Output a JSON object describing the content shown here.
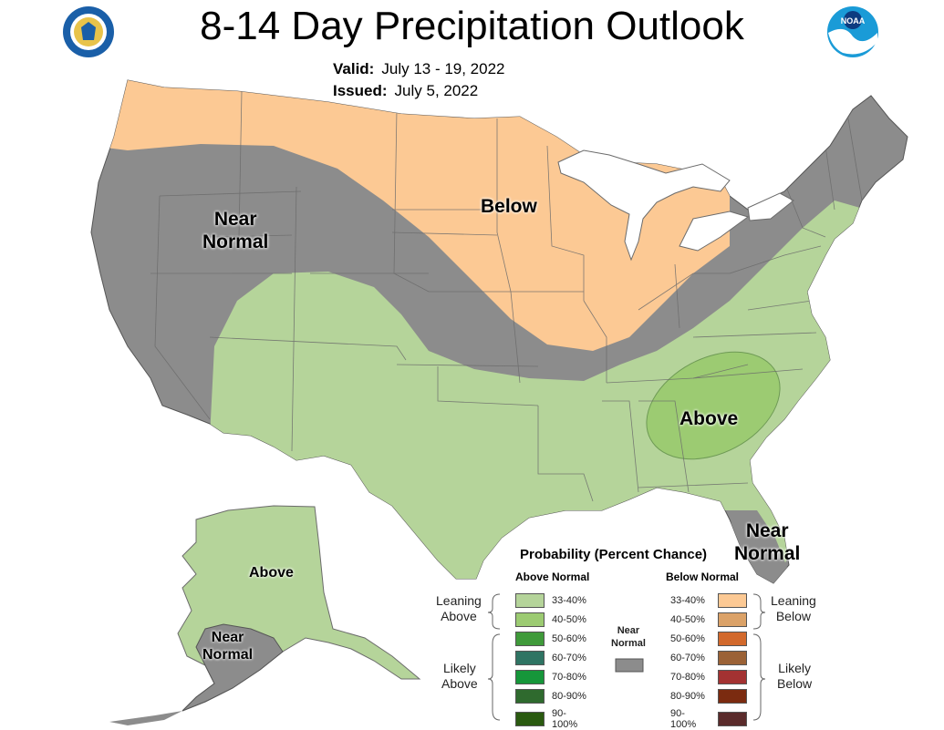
{
  "header": {
    "title": "8-14 Day Precipitation Outlook",
    "valid_label": "Valid:",
    "valid_value": "July 13 - 19, 2022",
    "issued_label": "Issued:",
    "issued_value": "July 5, 2022"
  },
  "map_labels": {
    "near_normal_west": [
      "Near",
      "Normal"
    ],
    "below": "Below",
    "above_southeast": "Above",
    "near_normal_florida": [
      "Near",
      "Normal"
    ],
    "alaska_above": "Above",
    "alaska_near_normal": [
      "Near",
      "Normal"
    ]
  },
  "legend": {
    "title": "Probability (Percent Chance)",
    "above_heading": "Above Normal",
    "below_heading": "Below Normal",
    "leaning_above": [
      "Leaning",
      "Above"
    ],
    "likely_above": [
      "Likely",
      "Above"
    ],
    "leaning_below": [
      "Leaning",
      "Below"
    ],
    "likely_below": [
      "Likely",
      "Below"
    ],
    "near_normal": [
      "Near",
      "Normal"
    ],
    "above_rows": [
      {
        "label": "33-40%",
        "color": "#b5d49a"
      },
      {
        "label": "40-50%",
        "color": "#9ccb72"
      },
      {
        "label": "50-60%",
        "color": "#3f9a3a"
      },
      {
        "label": "60-70%",
        "color": "#2f7463"
      },
      {
        "label": "70-80%",
        "color": "#16963a"
      },
      {
        "label": "80-90%",
        "color": "#2f6a2e"
      },
      {
        "label": "90-100%",
        "color": "#2a5a10"
      }
    ],
    "below_rows": [
      {
        "label": "33-40%",
        "color": "#fcc994"
      },
      {
        "label": "40-50%",
        "color": "#dba268"
      },
      {
        "label": "50-60%",
        "color": "#d2692c"
      },
      {
        "label": "60-70%",
        "color": "#9b6236"
      },
      {
        "label": "70-80%",
        "color": "#a33232"
      },
      {
        "label": "80-90%",
        "color": "#7b2b10"
      },
      {
        "label": "90-100%",
        "color": "#5a2b2b"
      }
    ],
    "near_normal_color": "#8c8c8c"
  },
  "colors": {
    "near_normal": "#8c8c8c",
    "below_leaning": "#fcc994",
    "above_leaning": "#b5d49a",
    "above_40_50": "#9ccb72",
    "state_lines": "#6b6b6b"
  },
  "logos": {
    "left": "department-of-commerce-seal-icon",
    "right": "noaa-logo-icon"
  }
}
